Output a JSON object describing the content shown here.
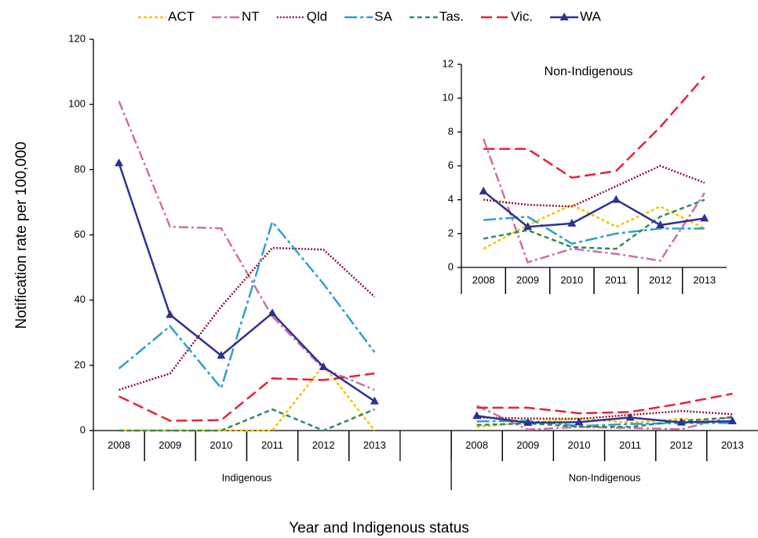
{
  "chart_data": [
    {
      "type": "line",
      "y_label": "Notification rate per 100,000",
      "x_label": "Year and Indigenous status",
      "categories": [
        "2008",
        "2009",
        "2010",
        "2011",
        "2012",
        "2013",
        null,
        "2008",
        "2009",
        "2010",
        "2011",
        "2012",
        "2013"
      ],
      "groups": [
        "Indigenous",
        "Non-Indigenous"
      ],
      "ylim": [
        0,
        120
      ],
      "yticks": [
        0,
        20,
        40,
        60,
        80,
        100,
        120
      ],
      "grid": false,
      "legend": "top",
      "series": [
        {
          "name": "ACT",
          "color": "#f5c400",
          "style": "dotted",
          "values": [
            0,
            0,
            0,
            0,
            20,
            0,
            null,
            1.1,
            2.5,
            3.7,
            2.4,
            3.6,
            2.3
          ]
        },
        {
          "name": "NT",
          "color": "#cc6fa6",
          "style": "dashdot",
          "values": [
            101,
            62.5,
            62,
            35,
            19,
            12.5,
            null,
            7.6,
            0.3,
            1.1,
            0.8,
            0.4,
            4.4
          ]
        },
        {
          "name": "Qld",
          "color": "#8b1a2b",
          "style": "dots",
          "values": [
            12.5,
            17.5,
            38,
            56,
            55.5,
            41,
            null,
            4.0,
            3.7,
            3.6,
            4.8,
            6.0,
            5.0
          ]
        },
        {
          "name": "SA",
          "color": "#2f9fd0",
          "style": "longdashdot",
          "values": [
            19,
            32,
            13,
            64,
            45,
            24,
            null,
            2.8,
            3.0,
            1.4,
            2.0,
            2.3,
            2.3
          ]
        },
        {
          "name": "Tas.",
          "color": "#2e8b57",
          "style": "dashed",
          "values": [
            0,
            0,
            0,
            6.5,
            0,
            6.5,
            null,
            1.7,
            2.2,
            1.2,
            1.1,
            3.0,
            4.0
          ]
        },
        {
          "name": "Vic.",
          "color": "#e8213a",
          "style": "longdash",
          "values": [
            10.5,
            3,
            3.2,
            16,
            15.5,
            17.5,
            null,
            7.0,
            7.0,
            5.3,
            5.7,
            8.3,
            11.3
          ]
        },
        {
          "name": "WA",
          "color": "#2e3192",
          "style": "solid",
          "marker": "triangle",
          "values": [
            82,
            35.5,
            23,
            36,
            19.5,
            9,
            null,
            4.5,
            2.4,
            2.6,
            4.0,
            2.5,
            2.9
          ]
        }
      ]
    },
    {
      "type": "line",
      "title": "Non-Indigenous",
      "categories": [
        "2008",
        "2009",
        "2010",
        "2011",
        "2012",
        "2013"
      ],
      "ylim": [
        0,
        12
      ],
      "yticks": [
        0,
        2,
        4,
        6,
        8,
        10,
        12
      ],
      "grid": false,
      "series": [
        {
          "color": "#f5c400",
          "style": "dotted",
          "values": [
            1.1,
            2.5,
            3.7,
            2.4,
            3.6,
            2.3
          ]
        },
        {
          "color": "#cc6fa6",
          "style": "dashdot",
          "values": [
            7.6,
            0.3,
            1.1,
            0.8,
            0.4,
            4.4
          ]
        },
        {
          "color": "#8b1a2b",
          "style": "dots",
          "values": [
            4.0,
            3.7,
            3.6,
            4.8,
            6.0,
            5.0
          ]
        },
        {
          "color": "#2f9fd0",
          "style": "longdashdot",
          "values": [
            2.8,
            3.0,
            1.4,
            2.0,
            2.3,
            2.3
          ]
        },
        {
          "color": "#2e8b57",
          "style": "dashed",
          "values": [
            1.7,
            2.2,
            1.2,
            1.1,
            3.0,
            4.0
          ]
        },
        {
          "color": "#e8213a",
          "style": "longdash",
          "values": [
            7.0,
            7.0,
            5.3,
            5.7,
            8.3,
            11.3
          ]
        },
        {
          "color": "#2e3192",
          "style": "solid",
          "marker": "triangle",
          "values": [
            4.5,
            2.4,
            2.6,
            4.0,
            2.5,
            2.9
          ]
        }
      ]
    }
  ]
}
